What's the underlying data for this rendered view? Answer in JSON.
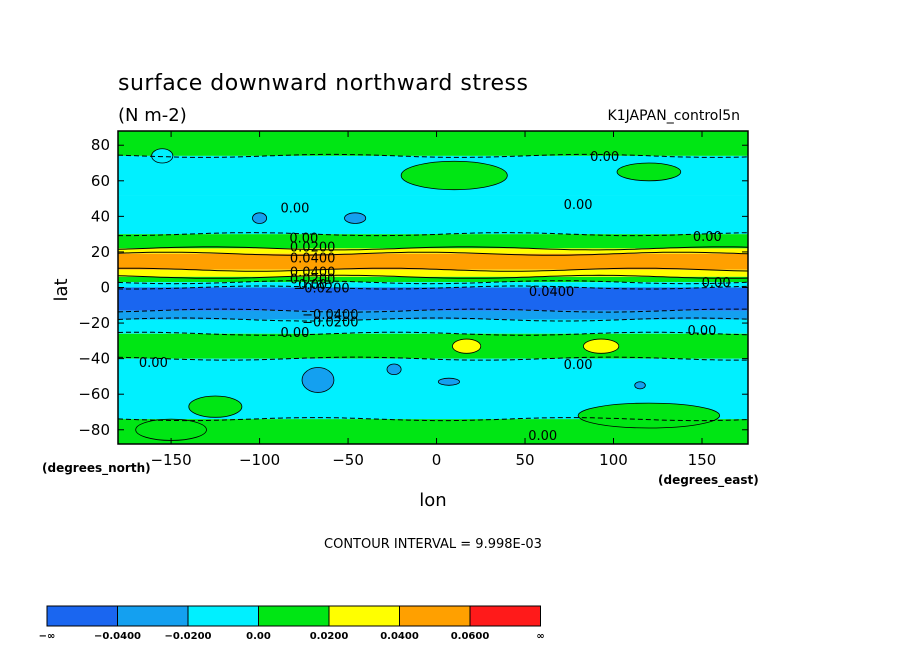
{
  "chart_data": {
    "type": "heatmap",
    "title": "surface downward northward stress",
    "units": "(N m-2)",
    "run_label": "K1JAPAN_control5n",
    "xlabel": "lon",
    "ylabel": "lat",
    "x_units": "(degrees_east)",
    "y_units": "(degrees_north)",
    "xlim": [
      -180,
      176
    ],
    "ylim": [
      -88,
      88
    ],
    "x_ticks": [
      -150,
      -100,
      -50,
      0,
      50,
      100,
      150
    ],
    "x_tick_labels": [
      "−150",
      "−100",
      "−50",
      "0",
      "50",
      "100",
      "150"
    ],
    "y_ticks": [
      80,
      60,
      40,
      20,
      0,
      -20,
      -40,
      -60,
      -80
    ],
    "y_tick_labels": [
      "80",
      "60",
      "40",
      "20",
      "0",
      "−20",
      "−40",
      "−60",
      "−80"
    ],
    "contour_interval": "CONTOUR INTERVAL = 9.998E-03",
    "colorbar": {
      "labels": [
        "−∞",
        "−0.0400",
        "−0.0200",
        "0.00",
        "0.0200",
        "0.0400",
        "0.0600",
        "∞"
      ],
      "colors": [
        "#1a66f0",
        "#14a0f0",
        "#00f0ff",
        "#00e614",
        "#ffff00",
        "#ffa000",
        "#ff1a1a"
      ]
    },
    "zonal_bands": [
      {
        "lat_from": 88,
        "lat_to": 74,
        "level": 3
      },
      {
        "lat_from": 74,
        "lat_to": 52,
        "level": 2
      },
      {
        "lat_from": 52,
        "lat_to": 30,
        "level": 2
      },
      {
        "lat_from": 30,
        "lat_to": 22,
        "level": 3
      },
      {
        "lat_from": 22,
        "lat_to": 19,
        "level": 4
      },
      {
        "lat_from": 19,
        "lat_to": 10,
        "level": 5
      },
      {
        "lat_from": 10,
        "lat_to": 6,
        "level": 4
      },
      {
        "lat_from": 6,
        "lat_to": 3,
        "level": 3
      },
      {
        "lat_from": 3,
        "lat_to": 0,
        "level": 2
      },
      {
        "lat_from": 0,
        "lat_to": -13,
        "level": 0
      },
      {
        "lat_from": -13,
        "lat_to": -18,
        "level": 1
      },
      {
        "lat_from": -18,
        "lat_to": -26,
        "level": 2
      },
      {
        "lat_from": -26,
        "lat_to": -40,
        "level": 3
      },
      {
        "lat_from": -40,
        "lat_to": -74,
        "level": 2
      },
      {
        "lat_from": -74,
        "lat_to": -88,
        "level": 3
      }
    ],
    "patches": [
      {
        "lon": -155,
        "lat": 74,
        "rlon": 6,
        "rlat": 4,
        "level": 2
      },
      {
        "lon": 10,
        "lat": 63,
        "rlon": 30,
        "rlat": 8,
        "level": 3
      },
      {
        "lon": 120,
        "lat": 65,
        "rlon": 18,
        "rlat": 5,
        "level": 3
      },
      {
        "lon": -100,
        "lat": 39,
        "rlon": 4,
        "rlat": 3,
        "level": 1
      },
      {
        "lon": -46,
        "lat": 39,
        "rlon": 6,
        "rlat": 3,
        "level": 1
      },
      {
        "lon": 17,
        "lat": -33,
        "rlon": 8,
        "rlat": 4,
        "level": 4
      },
      {
        "lon": 93,
        "lat": -33,
        "rlon": 10,
        "rlat": 4,
        "level": 4
      },
      {
        "lon": -67,
        "lat": -52,
        "rlon": 9,
        "rlat": 7,
        "level": 1
      },
      {
        "lon": -24,
        "lat": -46,
        "rlon": 4,
        "rlat": 3,
        "level": 1
      },
      {
        "lon": 7,
        "lat": -53,
        "rlon": 6,
        "rlat": 2,
        "level": 1
      },
      {
        "lon": 115,
        "lat": -55,
        "rlon": 3,
        "rlat": 2,
        "level": 1
      },
      {
        "lon": -125,
        "lat": -67,
        "rlon": 15,
        "rlat": 6,
        "level": 3
      },
      {
        "lon": 120,
        "lat": -72,
        "rlon": 40,
        "rlat": 7,
        "level": 3
      },
      {
        "lon": -150,
        "lat": -80,
        "rlon": 20,
        "rlat": 6,
        "level": 3
      }
    ],
    "contour_labels": [
      {
        "text": "0.00",
        "lon": 95,
        "lat": 74
      },
      {
        "text": "0.00",
        "lon": -80,
        "lat": 45
      },
      {
        "text": "0.00",
        "lon": 80,
        "lat": 47
      },
      {
        "text": "0.00",
        "lon": 153,
        "lat": 29
      },
      {
        "text": "0.00",
        "lon": -75,
        "lat": 28
      },
      {
        "text": "0.0200",
        "lon": -70,
        "lat": 23
      },
      {
        "text": "0.0400",
        "lon": -70,
        "lat": 17
      },
      {
        "text": "0.0400",
        "lon": -70,
        "lat": 9
      },
      {
        "text": "0.0200",
        "lon": -70,
        "lat": 5
      },
      {
        "text": "0.00",
        "lon": -70,
        "lat": 2
      },
      {
        "text": "−0.0200",
        "lon": -65,
        "lat": 0
      },
      {
        "text": "0.0400",
        "lon": 65,
        "lat": -2
      },
      {
        "text": "0.00",
        "lon": 158,
        "lat": 3
      },
      {
        "text": "−0.0400",
        "lon": -60,
        "lat": -15
      },
      {
        "text": "−0.0200",
        "lon": -60,
        "lat": -19
      },
      {
        "text": "0.00",
        "lon": -80,
        "lat": -25
      },
      {
        "text": "0.00",
        "lon": 150,
        "lat": -24
      },
      {
        "text": "0.00",
        "lon": -160,
        "lat": -42
      },
      {
        "text": "0.00",
        "lon": 80,
        "lat": -43
      },
      {
        "text": "0.00",
        "lon": 60,
        "lat": -83
      }
    ]
  }
}
